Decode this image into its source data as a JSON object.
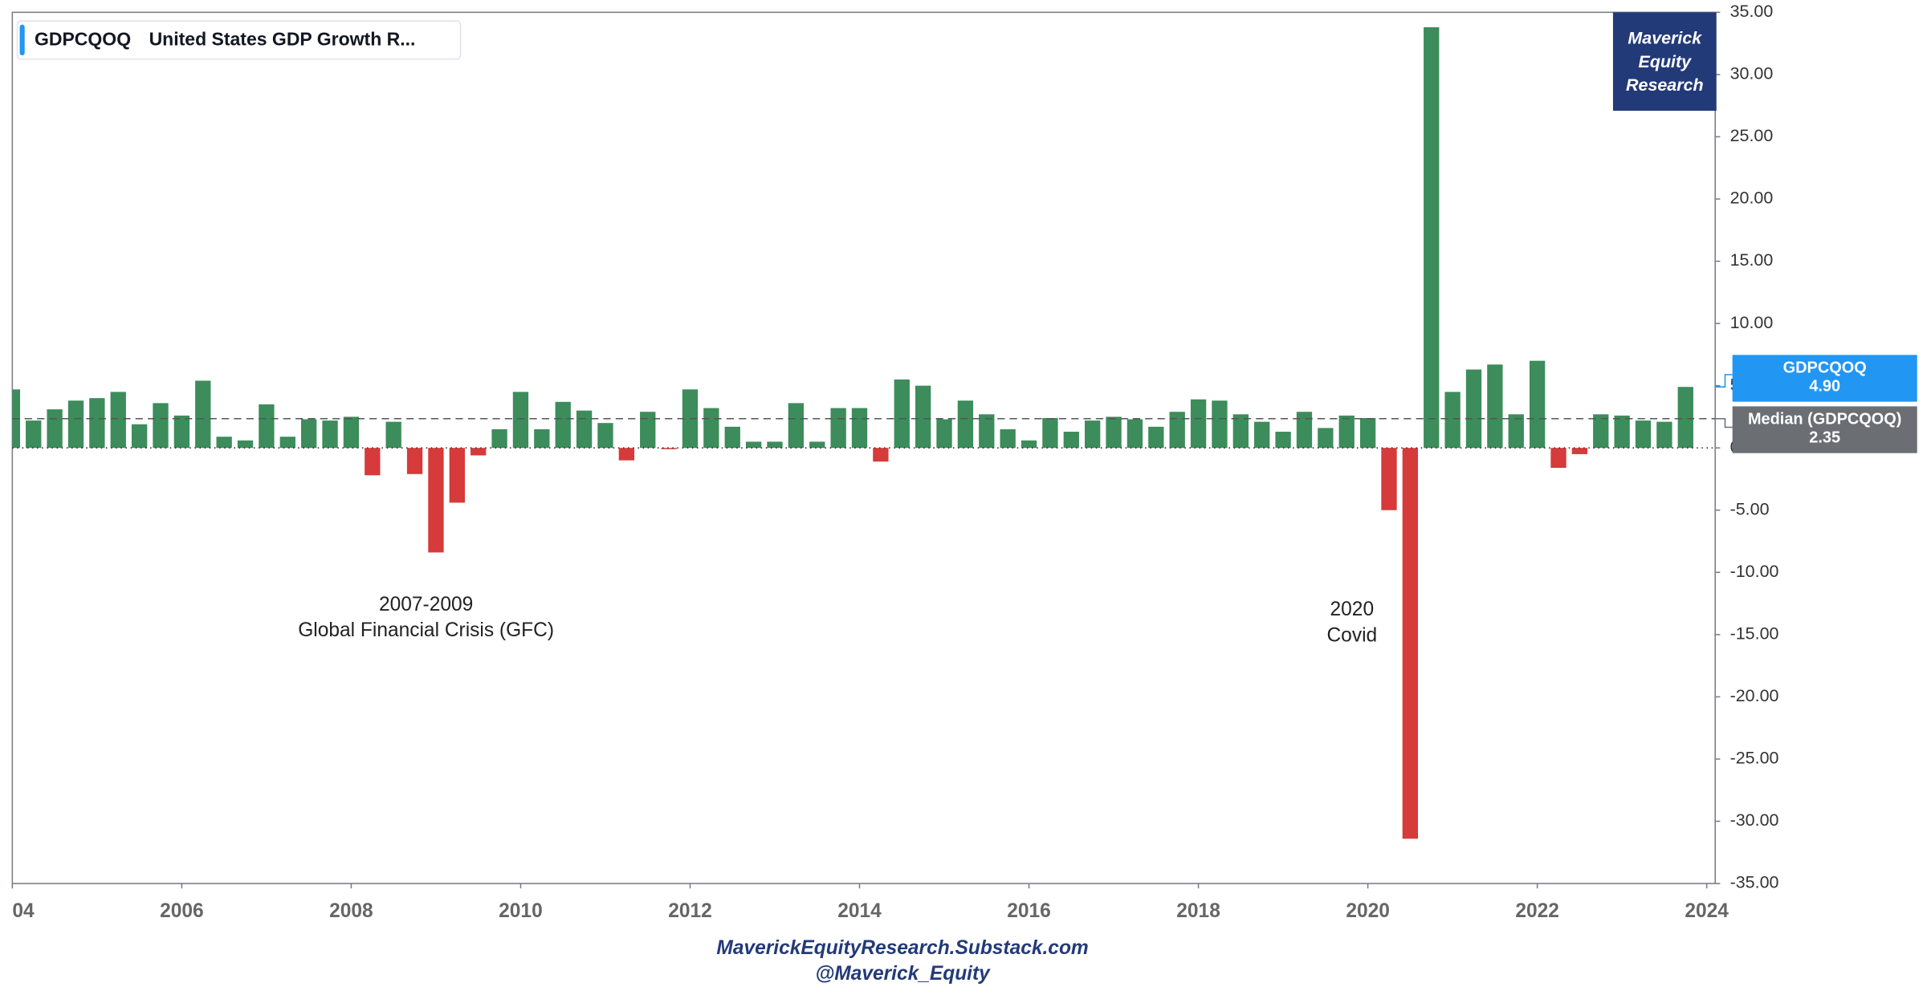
{
  "chart_data": {
    "type": "bar",
    "title": "GDPCQOQ",
    "subtitle": "United States GDP Growth R...",
    "x": [
      2004,
      2004.25,
      2004.5,
      2004.75,
      2005,
      2005.25,
      2005.5,
      2005.75,
      2006,
      2006.25,
      2006.5,
      2006.75,
      2007,
      2007.25,
      2007.5,
      2007.75,
      2008,
      2008.25,
      2008.5,
      2008.75,
      2009,
      2009.25,
      2009.5,
      2009.75,
      2010,
      2010.25,
      2010.5,
      2010.75,
      2011,
      2011.25,
      2011.5,
      2011.75,
      2012,
      2012.25,
      2012.5,
      2012.75,
      2013,
      2013.25,
      2013.5,
      2013.75,
      2014,
      2014.25,
      2014.5,
      2014.75,
      2015,
      2015.25,
      2015.5,
      2015.75,
      2016,
      2016.25,
      2016.5,
      2016.75,
      2017,
      2017.25,
      2017.5,
      2017.75,
      2018,
      2018.25,
      2018.5,
      2018.75,
      2019,
      2019.25,
      2019.5,
      2019.75,
      2020,
      2020.25,
      2020.5,
      2020.75,
      2021,
      2021.25,
      2021.5,
      2021.75,
      2022,
      2022.25,
      2022.5,
      2022.75,
      2023,
      2023.25,
      2023.5,
      2023.75
    ],
    "series": [
      {
        "name": "GDPCQOQ",
        "color": "#3d8c5c",
        "negative_color": "#d63a3a",
        "values": [
          4.7,
          2.2,
          3.1,
          3.8,
          4.0,
          4.5,
          1.9,
          3.6,
          2.6,
          5.4,
          0.9,
          0.6,
          3.5,
          0.9,
          2.3,
          2.2,
          2.5,
          -2.2,
          2.1,
          -2.1,
          -8.4,
          -4.4,
          -0.6,
          1.5,
          4.5,
          1.5,
          3.7,
          3.0,
          2.0,
          -1.0,
          2.9,
          -0.1,
          4.7,
          3.2,
          1.7,
          0.5,
          0.5,
          3.6,
          0.5,
          3.2,
          3.2,
          -1.1,
          5.5,
          5.0,
          2.3,
          3.8,
          2.7,
          1.5,
          0.6,
          2.4,
          1.3,
          2.2,
          2.5,
          2.3,
          1.7,
          2.9,
          3.9,
          3.8,
          2.7,
          2.1,
          1.3,
          2.9,
          1.6,
          2.6,
          2.4,
          -5.0,
          -31.4,
          33.8,
          4.5,
          6.3,
          6.7,
          2.7,
          7.0,
          -1.6,
          -0.5,
          2.7,
          2.6,
          2.2,
          2.1,
          4.9
        ]
      }
    ],
    "last_value_label": "4.90",
    "median": {
      "name": "Median (GDPCQOQ)",
      "value": 2.35,
      "label": "2.35"
    },
    "xlim": [
      2004,
      2024.1
    ],
    "xticks": [
      {
        "value": 2004,
        "label": "04"
      },
      2006,
      2008,
      2010,
      2012,
      2014,
      2016,
      2018,
      2020,
      2022,
      2024
    ],
    "ylim": [
      -35,
      35
    ],
    "yticks": [
      {
        "value": 35,
        "label": "35.00"
      },
      {
        "value": 30,
        "label": "30.00"
      },
      {
        "value": 25,
        "label": "25.00"
      },
      {
        "value": 20,
        "label": "20.00"
      },
      {
        "value": 15,
        "label": "15.00"
      },
      {
        "value": 10,
        "label": "10.00"
      },
      {
        "value": 5,
        "label": "5.00"
      },
      {
        "value": 0,
        "label": "0.00"
      },
      {
        "value": -5,
        "label": "-5.00"
      },
      {
        "value": -10,
        "label": "-10.00"
      },
      {
        "value": -15,
        "label": "-15.00"
      },
      {
        "value": -20,
        "label": "-20.00"
      },
      {
        "value": -25,
        "label": "-25.00"
      },
      {
        "value": -30,
        "label": "-30.00"
      },
      {
        "value": -35,
        "label": "-35.00"
      }
    ],
    "annotations": [
      "2007-2009",
      "Global Financial Crisis (GFC)",
      "2020",
      "Covid"
    ],
    "watermark": [
      "Maverick",
      "Equity",
      "Research"
    ],
    "footer": [
      "MaverickEquityResearch.Substack.com",
      "@Maverick_Equity"
    ]
  }
}
